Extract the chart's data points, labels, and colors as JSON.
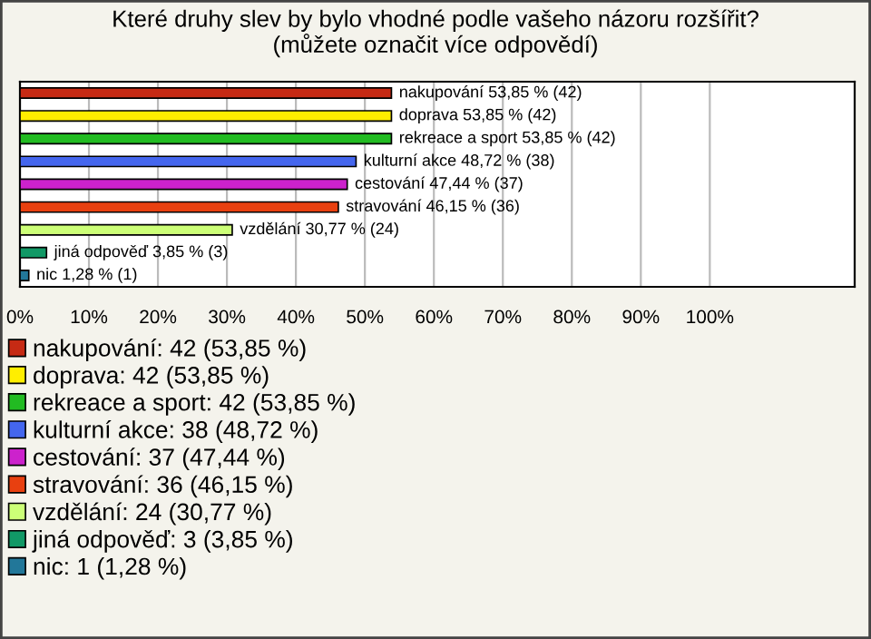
{
  "chart_data": {
    "type": "bar",
    "orientation": "horizontal",
    "title": "Které druhy slev by bylo vhodné podle vašeho názoru rozšířit?\n(můžete označit více odpovědí)",
    "categories": [
      null,
      null,
      null,
      null,
      null,
      null,
      null,
      null,
      null
    ],
    "series": [
      {
        "name": "nakupování: 42 (53,85 %)",
        "color": "#c62a14",
        "values": [
          53.85,
          null,
          null,
          null,
          null,
          null,
          null,
          null,
          null
        ],
        "value_labels": [
          "nakupování 53,85 % (42)",
          null,
          null,
          null,
          null,
          null,
          null,
          null,
          null
        ]
      },
      {
        "name": "doprava: 42 (53,85 %)",
        "color": "#ffee00",
        "values": [
          null,
          53.85,
          null,
          null,
          null,
          null,
          null,
          null,
          null
        ],
        "value_labels": [
          null,
          "doprava 53,85 % (42)",
          null,
          null,
          null,
          null,
          null,
          null,
          null
        ]
      },
      {
        "name": "rekreace a sport: 42 (53,85 %)",
        "color": "#22bb22",
        "values": [
          null,
          null,
          53.85,
          null,
          null,
          null,
          null,
          null,
          null
        ],
        "value_labels": [
          null,
          null,
          "rekreace a sport 53,85 % (42)",
          null,
          null,
          null,
          null,
          null,
          null
        ]
      },
      {
        "name": "kulturní akce: 38 (48,72 %)",
        "color": "#4466ee",
        "values": [
          null,
          null,
          null,
          48.72,
          null,
          null,
          null,
          null,
          null
        ],
        "value_labels": [
          null,
          null,
          null,
          "kulturní akce 48,72 % (38)",
          null,
          null,
          null,
          null,
          null
        ]
      },
      {
        "name": "cestování: 37 (47,44 %)",
        "color": "#cc22cc",
        "values": [
          null,
          null,
          null,
          null,
          47.44,
          null,
          null,
          null,
          null
        ],
        "value_labels": [
          null,
          null,
          null,
          null,
          "cestování 47,44 % (37)",
          null,
          null,
          null,
          null
        ]
      },
      {
        "name": "stravování: 36 (46,15 %)",
        "color": "#e84010",
        "values": [
          null,
          null,
          null,
          null,
          null,
          46.15,
          null,
          null,
          null
        ],
        "value_labels": [
          null,
          null,
          null,
          null,
          null,
          "stravování 46,15 % (36)",
          null,
          null,
          null
        ]
      },
      {
        "name": "vzdělání: 24 (30,77 %)",
        "color": "#ccff77",
        "values": [
          null,
          null,
          null,
          null,
          null,
          null,
          30.77,
          null,
          null
        ],
        "value_labels": [
          null,
          null,
          null,
          null,
          null,
          null,
          "vzdělání 30,77 % (24)",
          null,
          null
        ]
      },
      {
        "name": "jiná odpověď: 3 (3,85 %)",
        "color": "#119966",
        "values": [
          null,
          null,
          null,
          null,
          null,
          null,
          null,
          3.85,
          null
        ],
        "value_labels": [
          null,
          null,
          null,
          null,
          null,
          null,
          null,
          "jiná odpověď 3,85 % (3)",
          null
        ]
      },
      {
        "name": "nic: 1 (1,28 %)",
        "color": "#227799",
        "values": [
          null,
          null,
          null,
          null,
          null,
          null,
          null,
          null,
          1.28
        ],
        "value_labels": [
          null,
          null,
          null,
          null,
          null,
          null,
          null,
          null,
          "nic 1,28 % (1)"
        ]
      }
    ],
    "xlim": [
      0,
      121
    ],
    "xticks": [
      {
        "value": 0,
        "label": "0%"
      },
      {
        "value": 10,
        "label": "10%"
      },
      {
        "value": 20,
        "label": "20%"
      },
      {
        "value": 30,
        "label": "30%"
      },
      {
        "value": 40,
        "label": "40%"
      },
      {
        "value": 50,
        "label": "50%"
      },
      {
        "value": 60,
        "label": "60%"
      },
      {
        "value": 70,
        "label": "70%"
      },
      {
        "value": 80,
        "label": "80%"
      },
      {
        "value": 90,
        "label": "90%"
      },
      {
        "value": 100,
        "label": "100%"
      }
    ],
    "grid": "x",
    "legend": "bottom"
  }
}
